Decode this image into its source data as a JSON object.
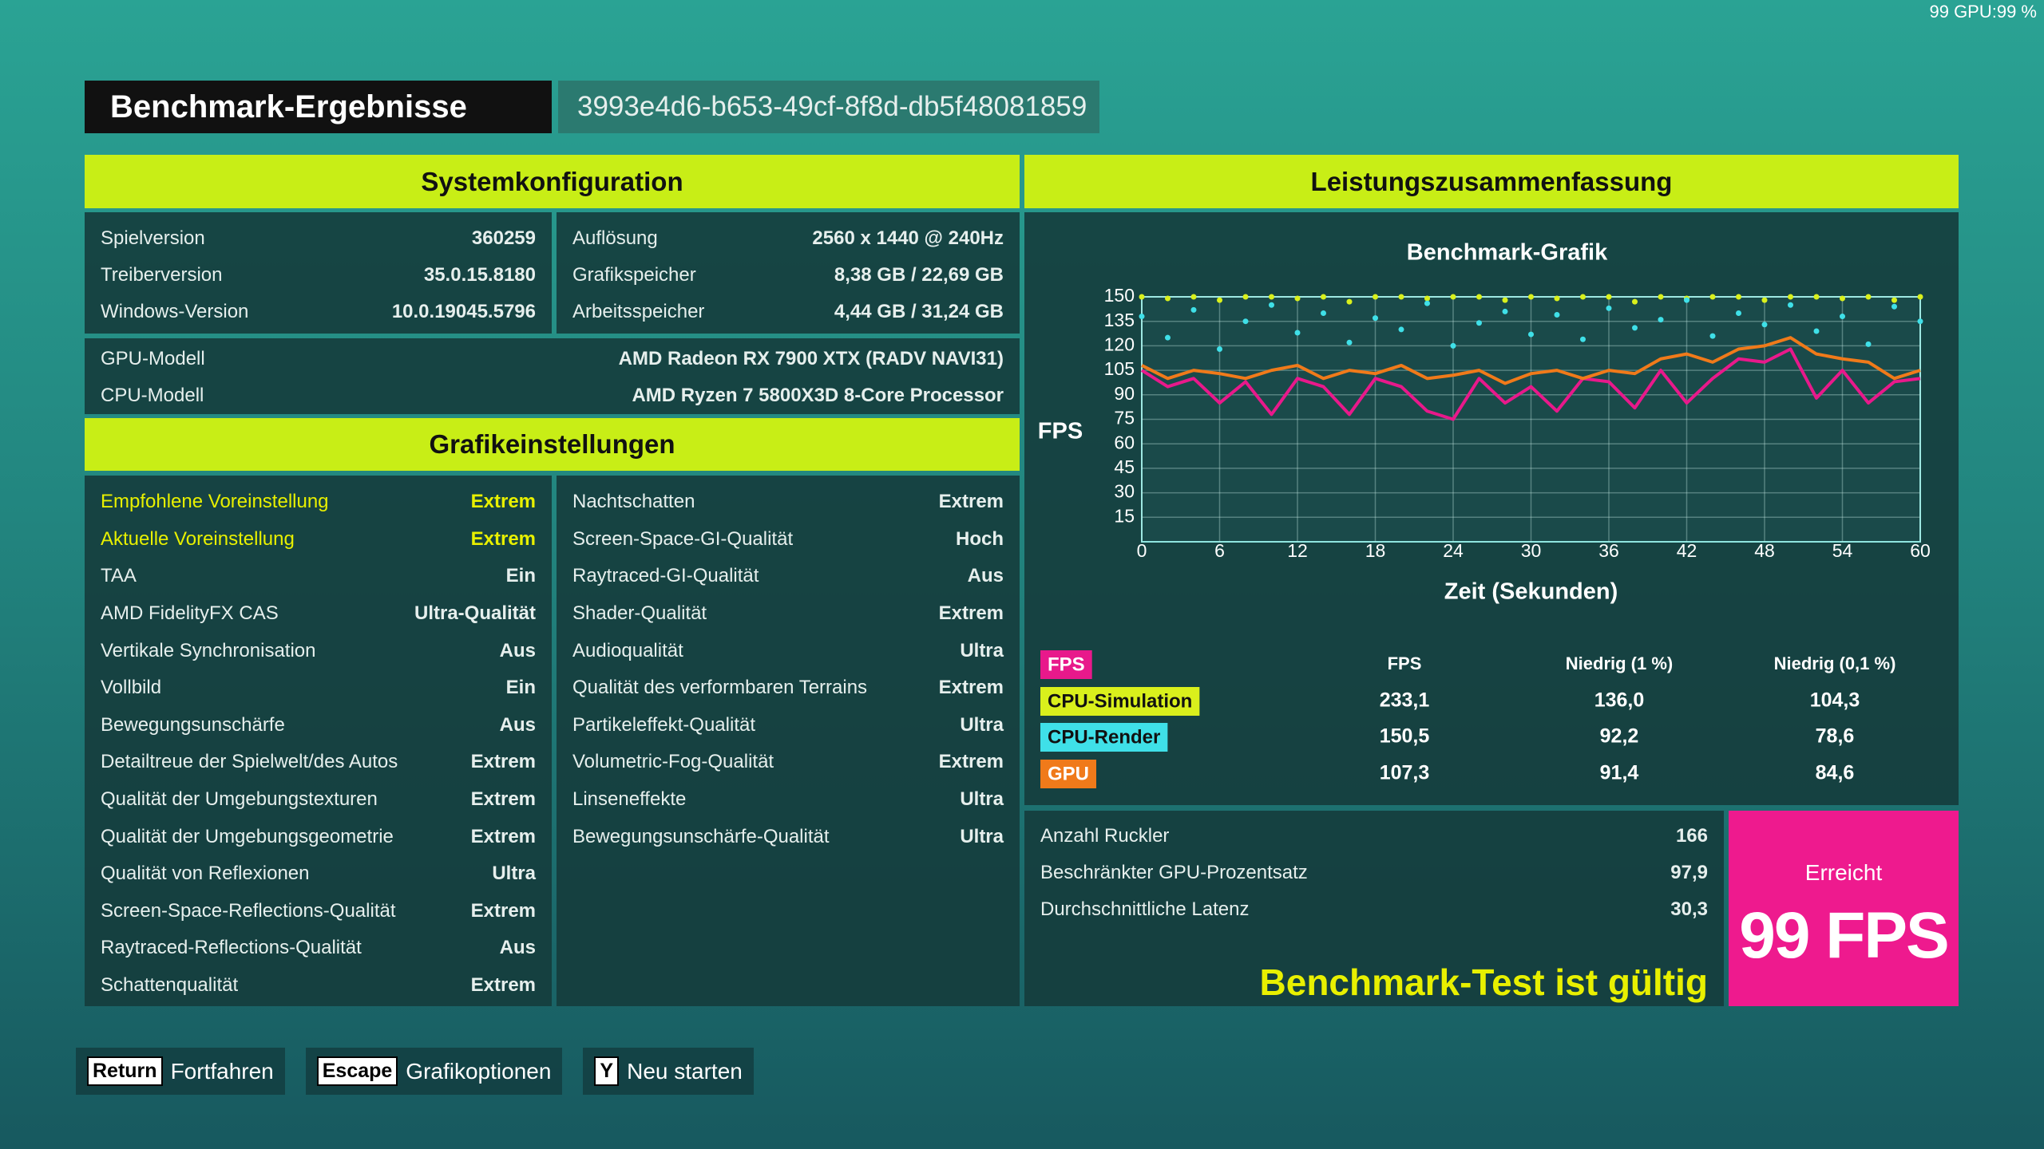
{
  "overlay": "99 GPU:99 %",
  "header": {
    "title": "Benchmark-Ergebnisse",
    "id": "3993e4d6-b653-49cf-8f8d-db5f48081859"
  },
  "system": {
    "title": "Systemkonfiguration",
    "left": [
      [
        "Spielversion",
        "360259"
      ],
      [
        "Treiberversion",
        "35.0.15.8180"
      ],
      [
        "Windows-Version",
        "10.0.19045.5796"
      ]
    ],
    "right": [
      [
        "Auflösung",
        "2560 x 1440 @ 240Hz"
      ],
      [
        "Grafikspeicher",
        "8,38 GB / 22,69 GB"
      ],
      [
        "Arbeitsspeicher",
        "4,44 GB / 31,24 GB"
      ]
    ],
    "hardware": [
      [
        "GPU-Modell",
        "AMD Radeon RX 7900 XTX (RADV NAVI31)"
      ],
      [
        "CPU-Modell",
        "AMD Ryzen 7 5800X3D 8-Core Processor"
      ]
    ]
  },
  "graphics": {
    "title": "Grafikeinstellungen",
    "left": [
      [
        "Empfohlene Voreinstellung",
        "Extrem"
      ],
      [
        "Aktuelle Voreinstellung",
        "Extrem"
      ],
      [
        "TAA",
        "Ein"
      ],
      [
        "AMD FidelityFX CAS",
        "Ultra-Qualität"
      ],
      [
        "Vertikale Synchronisation",
        "Aus"
      ],
      [
        "Vollbild",
        "Ein"
      ],
      [
        "Bewegungsunschärfe",
        "Aus"
      ],
      [
        "Detailtreue der Spielwelt/des Autos",
        "Extrem"
      ],
      [
        "Qualität der Umgebungstexturen",
        "Extrem"
      ],
      [
        "Qualität der Umgebungsgeometrie",
        "Extrem"
      ],
      [
        "Qualität von Reflexionen",
        "Ultra"
      ],
      [
        "Screen-Space-Reflections-Qualität",
        "Extrem"
      ],
      [
        "Raytraced-Reflections-Qualität",
        "Aus"
      ],
      [
        "Schattenqualität",
        "Extrem"
      ]
    ],
    "right": [
      [
        "Nachtschatten",
        "Extrem"
      ],
      [
        "Screen-Space-GI-Qualität",
        "Hoch"
      ],
      [
        "Raytraced-GI-Qualität",
        "Aus"
      ],
      [
        "Shader-Qualität",
        "Extrem"
      ],
      [
        "Audioqualität",
        "Ultra"
      ],
      [
        "Qualität des verformbaren Terrains",
        "Extrem"
      ],
      [
        "Partikeleffekt-Qualität",
        "Ultra"
      ],
      [
        "Volumetric-Fog-Qualität",
        "Extrem"
      ],
      [
        "Linseneffekte",
        "Ultra"
      ],
      [
        "Bewegungsunschärfe-Qualität",
        "Ultra"
      ]
    ]
  },
  "performance": {
    "title": "Leistungszusammenfassung",
    "columns": [
      "FPS",
      "Niedrig (1 %)",
      "Niedrig (0,1 %)"
    ],
    "rows": [
      [
        "233,1",
        "136,0",
        "104,3"
      ],
      [
        "150,5",
        "92,2",
        "78,6"
      ],
      [
        "107,3",
        "91,4",
        "84,6"
      ]
    ],
    "stats": [
      [
        "Anzahl Ruckler",
        "166"
      ],
      [
        "Beschränkter GPU-Prozentsatz",
        "97,9"
      ],
      [
        "Durchschnittliche Latenz",
        "30,3"
      ]
    ],
    "status": "Benchmark-Test ist gültig",
    "result_label": "Erreicht",
    "result": "99 FPS"
  },
  "chart_data": {
    "type": "line",
    "title": "Benchmark-Grafik",
    "x_label": "Zeit (Sekunden)",
    "y_label": "FPS",
    "xlim": [
      0,
      60
    ],
    "xticks": [
      0,
      6,
      12,
      18,
      24,
      30,
      36,
      42,
      48,
      54,
      60
    ],
    "ylim": [
      0,
      150
    ],
    "yticks": [
      15,
      30,
      45,
      60,
      75,
      90,
      105,
      120,
      135,
      150
    ],
    "grid": true,
    "x": [
      0,
      2,
      4,
      6,
      8,
      10,
      12,
      14,
      16,
      18,
      20,
      22,
      24,
      26,
      28,
      30,
      32,
      34,
      36,
      38,
      40,
      42,
      44,
      46,
      48,
      50,
      52,
      54,
      56,
      58,
      60
    ],
    "series": [
      {
        "name": "FPS",
        "color": "#e8198b",
        "mode": "line",
        "values": [
          105,
          95,
          100,
          85,
          98,
          78,
          100,
          95,
          78,
          100,
          95,
          80,
          75,
          100,
          85,
          95,
          80,
          100,
          98,
          82,
          105,
          85,
          100,
          112,
          110,
          118,
          88,
          105,
          85,
          98,
          100
        ]
      },
      {
        "name": "CPU-Simulation",
        "color": "#d9f01c",
        "mode": "points",
        "values": [
          150,
          149,
          150,
          148,
          150,
          150,
          149,
          150,
          147,
          150,
          150,
          149,
          150,
          150,
          148,
          150,
          149,
          150,
          150,
          147,
          150,
          149,
          150,
          150,
          148,
          150,
          150,
          149,
          150,
          148,
          150
        ]
      },
      {
        "name": "CPU-Render",
        "color": "#3fe0e8",
        "mode": "points",
        "values": [
          138,
          125,
          142,
          118,
          135,
          145,
          128,
          140,
          122,
          137,
          130,
          146,
          120,
          134,
          141,
          127,
          139,
          124,
          143,
          131,
          136,
          148,
          126,
          140,
          133,
          145,
          129,
          138,
          121,
          144,
          135
        ]
      },
      {
        "name": "GPU",
        "color": "#f07a1a",
        "mode": "line",
        "values": [
          108,
          100,
          105,
          103,
          100,
          105,
          108,
          100,
          105,
          103,
          108,
          100,
          102,
          105,
          97,
          103,
          105,
          100,
          105,
          103,
          112,
          115,
          110,
          118,
          120,
          125,
          115,
          112,
          110,
          100,
          105
        ]
      }
    ]
  },
  "footer": {
    "buttons": [
      {
        "key": "Return",
        "label": "Fortfahren"
      },
      {
        "key": "Escape",
        "label": "Grafikoptionen"
      },
      {
        "key": "Y",
        "label": "Neu starten"
      }
    ]
  }
}
